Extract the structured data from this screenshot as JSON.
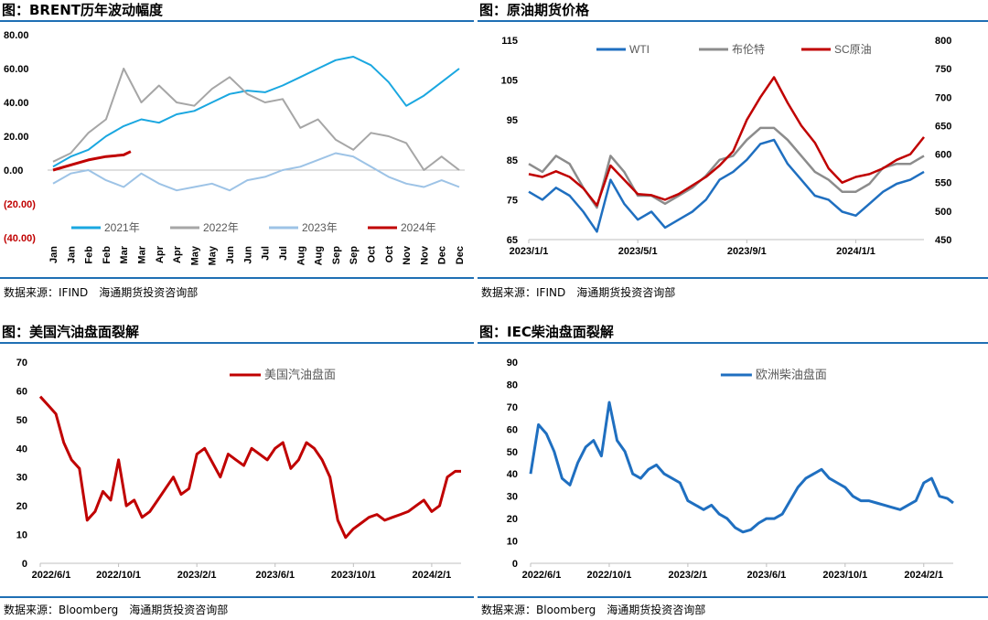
{
  "panels": [
    {
      "title": "图：BRENT历年波动幅度",
      "source": "数据来源：IFIND　海通期货投资咨询部"
    },
    {
      "title": "图：原油期货价格",
      "source": "数据来源：IFIND　海通期货投资咨询部"
    },
    {
      "title": "图：美国汽油盘面裂解",
      "source": "数据来源：Bloomberg　海通期货投资咨询部"
    },
    {
      "title": "图：IEC柴油盘面裂解",
      "source": "数据来源：Bloomberg　海通期货投资咨询部"
    }
  ],
  "chart_data": [
    {
      "type": "line",
      "title": "图：BRENT历年波动幅度",
      "x_ticks": [
        "Jan",
        "Jan",
        "Feb",
        "Feb",
        "Mar",
        "Mar",
        "Apr",
        "Apr",
        "May",
        "May",
        "Jun",
        "Jun",
        "Jul",
        "Jul",
        "Aug",
        "Aug",
        "Sep",
        "Sep",
        "Oct",
        "Oct",
        "Nov",
        "Nov",
        "Dec",
        "Dec"
      ],
      "y_ticks": [
        "80.00",
        "60.00",
        "40.00",
        "20.00",
        "0.00",
        "(20.00)",
        "(40.00)"
      ],
      "ylim": [
        -40,
        80
      ],
      "legend_position": "bottom",
      "series": [
        {
          "name": "2021年",
          "color": "#1aa7e0",
          "x": [
            0,
            0.5,
            1,
            1.5,
            2,
            2.5,
            3,
            3.5,
            4,
            4.5,
            5,
            5.5,
            6,
            6.5,
            7,
            7.5,
            8,
            8.5,
            9,
            9.5,
            10,
            10.5,
            11,
            11.5
          ],
          "values": [
            2,
            8,
            12,
            20,
            26,
            30,
            28,
            33,
            35,
            40,
            45,
            47,
            46,
            50,
            55,
            60,
            65,
            67,
            62,
            52,
            38,
            44,
            52,
            60
          ]
        },
        {
          "name": "2022年",
          "color": "#a6a6a6",
          "x": [
            0,
            0.5,
            1,
            1.5,
            2,
            2.5,
            3,
            3.5,
            4,
            4.5,
            5,
            5.5,
            6,
            6.5,
            7,
            7.5,
            8,
            8.5,
            9,
            9.5,
            10,
            10.5,
            11,
            11.5
          ],
          "values": [
            5,
            10,
            22,
            30,
            60,
            40,
            50,
            40,
            38,
            48,
            55,
            45,
            40,
            42,
            25,
            30,
            18,
            12,
            22,
            20,
            16,
            0,
            8,
            0
          ]
        },
        {
          "name": "2023年",
          "color": "#9dc3e6",
          "x": [
            0,
            0.5,
            1,
            1.5,
            2,
            2.5,
            3,
            3.5,
            4,
            4.5,
            5,
            5.5,
            6,
            6.5,
            7,
            7.5,
            8,
            8.5,
            9,
            9.5,
            10,
            10.5,
            11,
            11.5
          ],
          "values": [
            -8,
            -2,
            0,
            -6,
            -10,
            -2,
            -8,
            -12,
            -10,
            -8,
            -12,
            -6,
            -4,
            0,
            2,
            6,
            10,
            8,
            2,
            -4,
            -8,
            -10,
            -6,
            -10
          ]
        },
        {
          "name": "2024年",
          "color": "#c00000",
          "x": [
            0,
            0.5,
            1,
            1.5,
            2,
            2.2
          ],
          "values": [
            0,
            3,
            6,
            8,
            9,
            11
          ]
        }
      ]
    },
    {
      "type": "line",
      "title": "图：原油期货价格",
      "x_ticks": [
        "2023/1/1",
        "2023/5/1",
        "2023/9/1",
        "2024/1/1"
      ],
      "x_tick_months": [
        0,
        4,
        8,
        12
      ],
      "y_left_ticks": [
        "115",
        "105",
        "95",
        "85",
        "75",
        "65"
      ],
      "ylim_left": [
        65,
        115
      ],
      "y_right_ticks": [
        "800",
        "750",
        "700",
        "650",
        "600",
        "550",
        "500",
        "450"
      ],
      "ylim_right": [
        450,
        800
      ],
      "legend_position": "top",
      "series": [
        {
          "name": "WTI",
          "color": "#1f6fc0",
          "axis": "left",
          "x": [
            0,
            0.5,
            1,
            1.5,
            2,
            2.5,
            3,
            3.5,
            4,
            4.5,
            5,
            5.5,
            6,
            6.5,
            7,
            7.5,
            8,
            8.5,
            9,
            9.5,
            10,
            10.5,
            11,
            11.5,
            12,
            12.5,
            13,
            13.5,
            14,
            14.5
          ],
          "values": [
            77,
            75,
            78,
            76,
            72,
            67,
            80,
            74,
            70,
            72,
            68,
            70,
            72,
            75,
            80,
            82,
            85,
            89,
            90,
            84,
            80,
            76,
            75,
            72,
            71,
            74,
            77,
            79,
            80,
            82
          ]
        },
        {
          "name": "布伦特",
          "color": "#8c8c8c",
          "axis": "left",
          "x": [
            0,
            0.5,
            1,
            1.5,
            2,
            2.5,
            3,
            3.5,
            4,
            4.5,
            5,
            5.5,
            6,
            6.5,
            7,
            7.5,
            8,
            8.5,
            9,
            9.5,
            10,
            10.5,
            11,
            11.5,
            12,
            12.5,
            13,
            13.5,
            14,
            14.5
          ],
          "values": [
            84,
            82,
            86,
            84,
            78,
            73,
            86,
            82,
            76,
            76,
            74,
            76,
            78,
            81,
            85,
            86,
            90,
            93,
            93,
            90,
            86,
            82,
            80,
            77,
            77,
            79,
            83,
            84,
            84,
            86
          ]
        },
        {
          "name": "SC原油",
          "color": "#c00000",
          "axis": "right",
          "x": [
            0,
            0.5,
            1,
            1.5,
            2,
            2.5,
            3,
            3.5,
            4,
            4.5,
            5,
            5.5,
            6,
            6.5,
            7,
            7.5,
            8,
            8.5,
            9,
            9.5,
            10,
            10.5,
            11,
            11.5,
            12,
            12.5,
            13,
            13.5,
            14,
            14.5
          ],
          "values": [
            565,
            560,
            570,
            560,
            540,
            510,
            580,
            555,
            530,
            528,
            520,
            530,
            545,
            560,
            580,
            605,
            660,
            700,
            735,
            690,
            650,
            620,
            575,
            550,
            560,
            565,
            575,
            590,
            600,
            630
          ]
        }
      ]
    },
    {
      "type": "line",
      "title": "图：美国汽油盘面裂解",
      "x_ticks": [
        "2022/6/1",
        "2022/10/1",
        "2023/2/1",
        "2023/6/1",
        "2023/10/1",
        "2024/2/1"
      ],
      "x_tick_months": [
        0,
        4,
        8,
        12,
        16,
        20
      ],
      "y_ticks": [
        "70",
        "60",
        "50",
        "40",
        "30",
        "20",
        "10",
        "0"
      ],
      "ylim": [
        0,
        70
      ],
      "legend_position": "top",
      "series": [
        {
          "name": "美国汽油盘面",
          "color": "#c00000",
          "x": [
            0,
            0.4,
            0.8,
            1.2,
            1.6,
            2,
            2.4,
            2.8,
            3.2,
            3.6,
            4,
            4.4,
            4.8,
            5.2,
            5.6,
            6,
            6.4,
            6.8,
            7.2,
            7.6,
            8,
            8.4,
            8.8,
            9.2,
            9.6,
            10,
            10.4,
            10.8,
            11.2,
            11.6,
            12,
            12.4,
            12.8,
            13.2,
            13.6,
            14,
            14.4,
            14.8,
            15.2,
            15.6,
            16,
            16.4,
            16.8,
            17.2,
            17.6,
            18,
            18.4,
            18.8,
            19.2,
            19.6,
            20,
            20.4,
            20.8,
            21.2,
            21.5
          ],
          "values": [
            58,
            55,
            52,
            42,
            36,
            33,
            15,
            18,
            25,
            22,
            36,
            20,
            22,
            16,
            18,
            22,
            26,
            30,
            24,
            26,
            38,
            40,
            35,
            30,
            38,
            36,
            34,
            40,
            38,
            36,
            40,
            42,
            33,
            36,
            42,
            40,
            36,
            30,
            15,
            9,
            12,
            14,
            16,
            17,
            15,
            16,
            17,
            18,
            20,
            22,
            18,
            20,
            30,
            32,
            32
          ]
        }
      ]
    },
    {
      "type": "line",
      "title": "图：IEC柴油盘面裂解",
      "x_ticks": [
        "2022/6/1",
        "2022/10/1",
        "2023/2/1",
        "2023/6/1",
        "2023/10/1",
        "2024/2/1"
      ],
      "x_tick_months": [
        0,
        4,
        8,
        12,
        16,
        20
      ],
      "y_ticks": [
        "90",
        "80",
        "70",
        "60",
        "50",
        "40",
        "30",
        "20",
        "10",
        "0"
      ],
      "ylim": [
        0,
        90
      ],
      "legend_position": "top",
      "series": [
        {
          "name": "欧洲柴油盘面",
          "color": "#1f6fc0",
          "x": [
            0,
            0.4,
            0.8,
            1.2,
            1.6,
            2,
            2.4,
            2.8,
            3.2,
            3.6,
            4,
            4.4,
            4.8,
            5.2,
            5.6,
            6,
            6.4,
            6.8,
            7.2,
            7.6,
            8,
            8.4,
            8.8,
            9.2,
            9.6,
            10,
            10.4,
            10.8,
            11.2,
            11.6,
            12,
            12.4,
            12.8,
            13.2,
            13.6,
            14,
            14.4,
            14.8,
            15.2,
            15.6,
            16,
            16.4,
            16.8,
            17.2,
            17.6,
            18,
            18.4,
            18.8,
            19.2,
            19.6,
            20,
            20.4,
            20.8,
            21.2,
            21.5
          ],
          "values": [
            40,
            62,
            58,
            50,
            38,
            35,
            45,
            52,
            55,
            48,
            72,
            55,
            50,
            40,
            38,
            42,
            44,
            40,
            38,
            36,
            28,
            26,
            24,
            26,
            22,
            20,
            16,
            14,
            15,
            18,
            20,
            20,
            22,
            28,
            34,
            38,
            40,
            42,
            38,
            36,
            34,
            30,
            28,
            28,
            27,
            26,
            25,
            24,
            26,
            28,
            36,
            38,
            30,
            29,
            27
          ]
        }
      ]
    }
  ]
}
